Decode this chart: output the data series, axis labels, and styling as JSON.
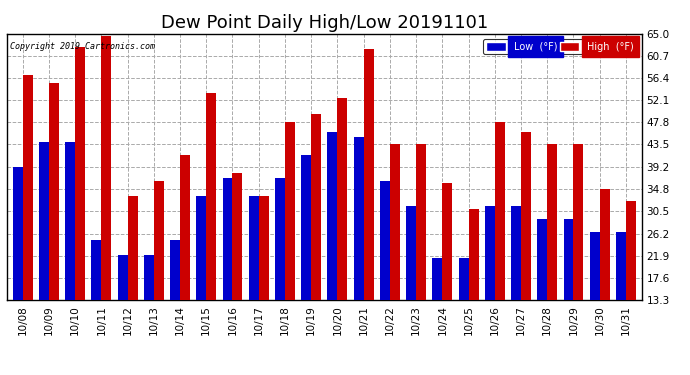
{
  "title": "Dew Point Daily High/Low 20191101",
  "copyright": "Copyright 2019 Cartronics.com",
  "dates": [
    "10/08",
    "10/09",
    "10/10",
    "10/11",
    "10/12",
    "10/13",
    "10/14",
    "10/15",
    "10/16",
    "10/17",
    "10/18",
    "10/19",
    "10/20",
    "10/21",
    "10/22",
    "10/23",
    "10/24",
    "10/25",
    "10/26",
    "10/27",
    "10/28",
    "10/29",
    "10/30",
    "10/31"
  ],
  "low": [
    39.2,
    44.0,
    44.0,
    25.0,
    22.0,
    22.0,
    25.0,
    33.5,
    37.0,
    33.5,
    37.0,
    41.5,
    46.0,
    45.0,
    36.5,
    31.5,
    21.5,
    21.5,
    31.5,
    31.5,
    29.0,
    29.0,
    26.5,
    26.5
  ],
  "high": [
    57.0,
    55.5,
    62.5,
    64.5,
    33.5,
    36.5,
    41.5,
    53.5,
    38.0,
    33.5,
    47.8,
    49.5,
    52.5,
    62.0,
    43.5,
    43.5,
    36.0,
    31.0,
    47.8,
    46.0,
    43.5,
    43.5,
    34.8,
    32.5
  ],
  "ylim_min": 13.3,
  "ylim_max": 65.0,
  "yticks": [
    13.3,
    17.6,
    21.9,
    26.2,
    30.5,
    34.8,
    39.2,
    43.5,
    47.8,
    52.1,
    56.4,
    60.7,
    65.0
  ],
  "low_color": "#0000cc",
  "high_color": "#cc0000",
  "bg_color": "#ffffff",
  "plot_bg_color": "#ffffff",
  "grid_color": "#aaaaaa",
  "title_fontsize": 13,
  "tick_fontsize": 7.5,
  "legend_low_label": "Low  (°F)",
  "legend_high_label": "High  (°F)"
}
